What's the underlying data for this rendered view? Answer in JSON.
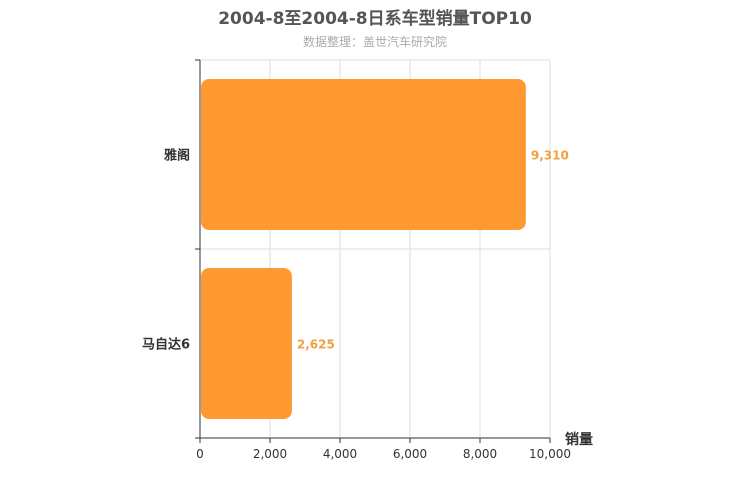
{
  "chart_data": {
    "type": "bar",
    "orientation": "horizontal",
    "title": "2004-8至2004-8日系车型销量TOP10",
    "subtitle": "数据整理：盖世汽车研究院",
    "categories": [
      "雅阁",
      "马自达6"
    ],
    "values": [
      9310,
      2625
    ],
    "data_labels": [
      "9,310",
      "2,625"
    ],
    "xlabel": "销量",
    "ylabel": "",
    "xlim": [
      0,
      10000
    ],
    "x_ticks": [
      0,
      2000,
      4000,
      6000,
      8000,
      10000
    ],
    "x_tick_labels": [
      "0",
      "2,000",
      "4,000",
      "6,000",
      "8,000",
      "10,000"
    ],
    "grid": true,
    "colors": {
      "bar": "#ff9a33",
      "label": "#f0a040",
      "grid": "#dddddd",
      "axis": "#333333"
    }
  }
}
